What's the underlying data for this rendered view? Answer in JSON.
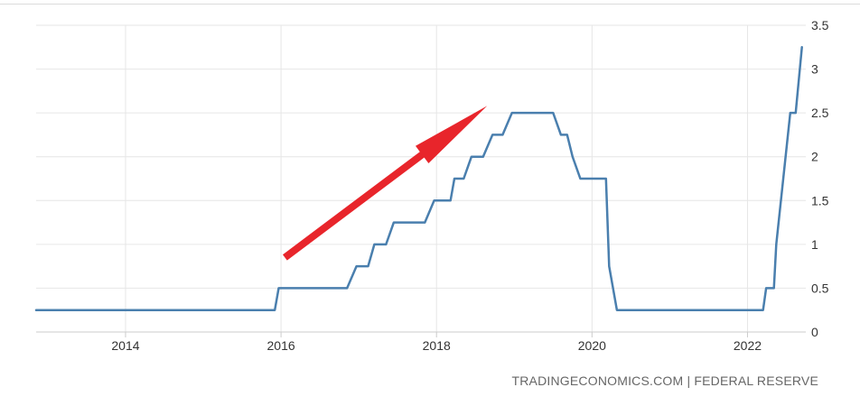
{
  "source_text": "TRADINGECONOMICS.COM | FEDERAL RESERVE",
  "colors": {
    "line": "#4a7fae",
    "grid": "#e6e6e6",
    "arrow": "#e8252b",
    "background": "#ffffff"
  },
  "chart_data": {
    "type": "line",
    "title": "",
    "xlabel": "",
    "ylabel": "",
    "xlim": [
      2012.85,
      2022.75
    ],
    "ylim": [
      0,
      3.5
    ],
    "x_ticks": [
      2014,
      2016,
      2018,
      2020,
      2022
    ],
    "x_tick_labels": [
      "2014",
      "2016",
      "2018",
      "2020",
      "2022"
    ],
    "y_ticks": [
      0,
      0.5,
      1,
      1.5,
      2,
      2.5,
      3,
      3.5
    ],
    "y_tick_labels": [
      "0",
      "0.5",
      "1",
      "1.5",
      "2",
      "2.5",
      "3",
      "3.5"
    ],
    "y_axis_side": "right",
    "grid": true,
    "series": [
      {
        "points": [
          [
            2012.85,
            0.25
          ],
          [
            2015.92,
            0.25
          ],
          [
            2015.97,
            0.5
          ],
          [
            2016.85,
            0.5
          ],
          [
            2016.97,
            0.75
          ],
          [
            2017.12,
            0.75
          ],
          [
            2017.2,
            1.0
          ],
          [
            2017.35,
            1.0
          ],
          [
            2017.45,
            1.25
          ],
          [
            2017.85,
            1.25
          ],
          [
            2017.97,
            1.5
          ],
          [
            2018.18,
            1.5
          ],
          [
            2018.23,
            1.75
          ],
          [
            2018.35,
            1.75
          ],
          [
            2018.45,
            2.0
          ],
          [
            2018.6,
            2.0
          ],
          [
            2018.72,
            2.25
          ],
          [
            2018.85,
            2.25
          ],
          [
            2018.97,
            2.5
          ],
          [
            2019.5,
            2.5
          ],
          [
            2019.6,
            2.25
          ],
          [
            2019.68,
            2.25
          ],
          [
            2019.75,
            2.0
          ],
          [
            2019.85,
            1.75
          ],
          [
            2020.18,
            1.75
          ],
          [
            2020.22,
            0.75
          ],
          [
            2020.32,
            0.25
          ],
          [
            2022.2,
            0.25
          ],
          [
            2022.24,
            0.5
          ],
          [
            2022.34,
            0.5
          ],
          [
            2022.37,
            1.0
          ],
          [
            2022.55,
            2.5
          ],
          [
            2022.62,
            2.5
          ],
          [
            2022.7,
            3.25
          ]
        ]
      }
    ],
    "annotations": [
      {
        "type": "arrow",
        "from": [
          2016.05,
          0.85
        ],
        "to": [
          2018.65,
          2.58
        ]
      }
    ]
  }
}
